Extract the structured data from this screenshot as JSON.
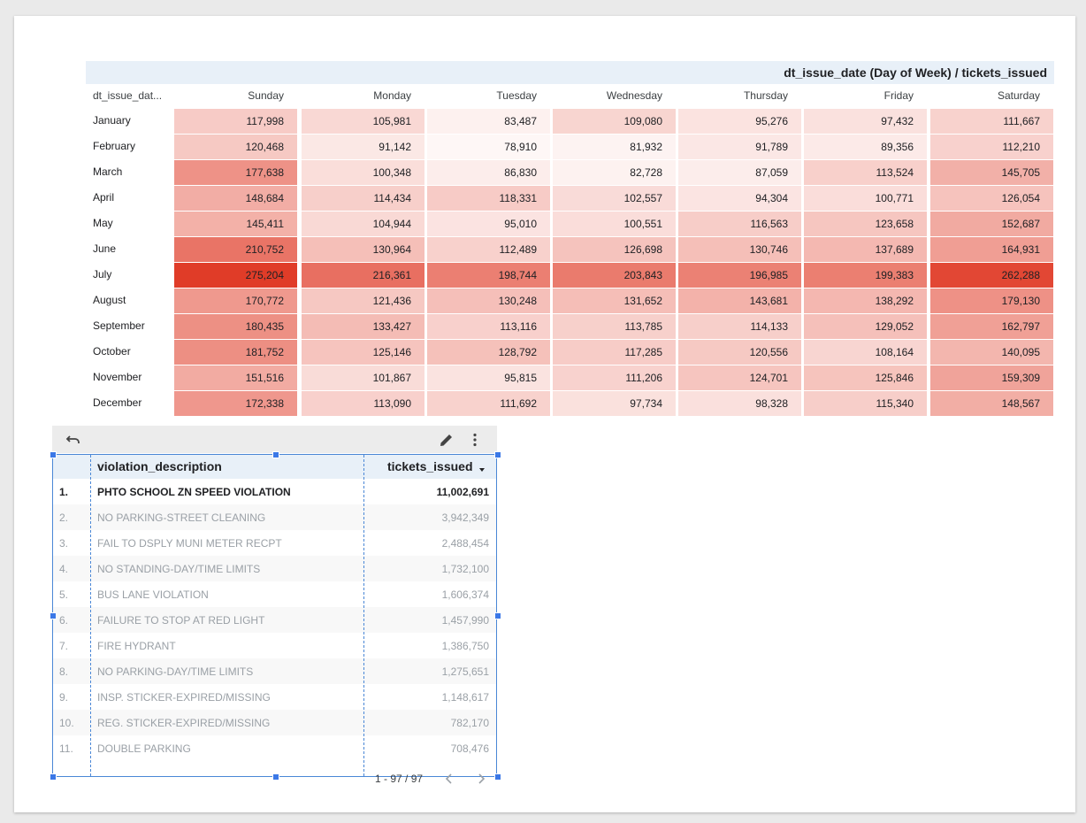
{
  "pivot": {
    "title": "dt_issue_date (Day of Week) / tickets_issued",
    "row_header": "dt_issue_dat...",
    "columns": [
      "Sunday",
      "Monday",
      "Tuesday",
      "Wednesday",
      "Thursday",
      "Friday",
      "Saturday"
    ],
    "rows": [
      {
        "label": "January",
        "values": [
          "117,998",
          "105,981",
          "83,487",
          "109,080",
          "95,276",
          "97,432",
          "111,667"
        ]
      },
      {
        "label": "February",
        "values": [
          "120,468",
          "91,142",
          "78,910",
          "81,932",
          "91,789",
          "89,356",
          "112,210"
        ]
      },
      {
        "label": "March",
        "values": [
          "177,638",
          "100,348",
          "86,830",
          "82,728",
          "87,059",
          "113,524",
          "145,705"
        ]
      },
      {
        "label": "April",
        "values": [
          "148,684",
          "114,434",
          "118,331",
          "102,557",
          "94,304",
          "100,771",
          "126,054"
        ]
      },
      {
        "label": "May",
        "values": [
          "145,411",
          "104,944",
          "95,010",
          "100,551",
          "116,563",
          "123,658",
          "152,687"
        ]
      },
      {
        "label": "June",
        "values": [
          "210,752",
          "130,964",
          "112,489",
          "126,698",
          "130,746",
          "137,689",
          "164,931"
        ]
      },
      {
        "label": "July",
        "values": [
          "275,204",
          "216,361",
          "198,744",
          "203,843",
          "196,985",
          "199,383",
          "262,288"
        ]
      },
      {
        "label": "August",
        "values": [
          "170,772",
          "121,436",
          "130,248",
          "131,652",
          "143,681",
          "138,292",
          "179,130"
        ]
      },
      {
        "label": "September",
        "values": [
          "180,435",
          "133,427",
          "113,116",
          "113,785",
          "114,133",
          "129,052",
          "162,797"
        ]
      },
      {
        "label": "October",
        "values": [
          "181,752",
          "125,146",
          "128,792",
          "117,285",
          "120,556",
          "108,164",
          "140,095"
        ]
      },
      {
        "label": "November",
        "values": [
          "151,516",
          "101,867",
          "95,815",
          "111,206",
          "124,701",
          "125,846",
          "159,309"
        ]
      },
      {
        "label": "December",
        "values": [
          "172,338",
          "113,090",
          "111,692",
          "97,734",
          "98,328",
          "115,340",
          "148,567"
        ]
      }
    ],
    "heat_color": "#e03c28"
  },
  "table": {
    "col_desc": "violation_description",
    "col_value": "tickets_issued",
    "sort_icon": "sort-desc-icon",
    "rows": [
      {
        "num": "1.",
        "desc": "PHTO SCHOOL ZN SPEED VIOLATION",
        "value": "11,002,691"
      },
      {
        "num": "2.",
        "desc": "NO PARKING-STREET CLEANING",
        "value": "3,942,349"
      },
      {
        "num": "3.",
        "desc": "FAIL TO DSPLY MUNI METER RECPT",
        "value": "2,488,454"
      },
      {
        "num": "4.",
        "desc": "NO STANDING-DAY/TIME LIMITS",
        "value": "1,732,100"
      },
      {
        "num": "5.",
        "desc": "BUS LANE VIOLATION",
        "value": "1,606,374"
      },
      {
        "num": "6.",
        "desc": "FAILURE TO STOP AT RED LIGHT",
        "value": "1,457,990"
      },
      {
        "num": "7.",
        "desc": "FIRE HYDRANT",
        "value": "1,386,750"
      },
      {
        "num": "8.",
        "desc": "NO PARKING-DAY/TIME LIMITS",
        "value": "1,275,651"
      },
      {
        "num": "9.",
        "desc": "INSP. STICKER-EXPIRED/MISSING",
        "value": "1,148,617"
      },
      {
        "num": "10.",
        "desc": "REG. STICKER-EXPIRED/MISSING",
        "value": "782,170"
      },
      {
        "num": "11.",
        "desc": "DOUBLE PARKING",
        "value": "708,476"
      }
    ],
    "pagination": "1 - 97 / 97",
    "toolbar_icons": [
      "undo-icon",
      "edit-pencil-icon",
      "more-vert-icon"
    ]
  }
}
